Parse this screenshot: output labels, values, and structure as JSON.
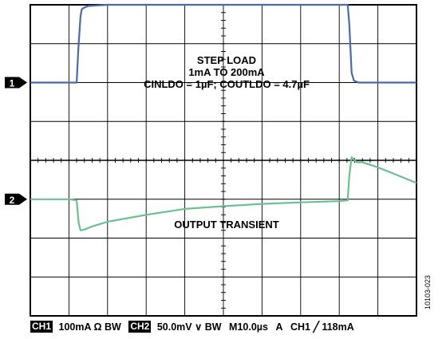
{
  "chart_data": {
    "type": "line",
    "title": "",
    "xlabel": "",
    "ylabel": "",
    "divisions": {
      "x": 10,
      "y": 8
    },
    "xlim": [
      0,
      10
    ],
    "ylim": [
      0,
      8
    ],
    "grid": true,
    "annotations": {
      "step_load_title": "STEP LOAD",
      "step_load_range": "1mA TO 200mA",
      "caps": "CINLDO = 1µF; COUTLDO = 4.7µF",
      "output_transient": "OUTPUT TRANSIENT"
    },
    "series": [
      {
        "name": "1",
        "color": "#4a6aa8",
        "marker_label": "1",
        "marker_level": 6.0,
        "x": [
          0,
          1.2,
          1.24,
          1.3,
          1.33,
          1.38,
          1.5,
          2.0,
          4.0,
          6.0,
          7.5,
          8.22,
          8.26,
          8.32,
          8.38,
          8.5,
          9.0,
          10.0
        ],
        "y": [
          6.0,
          6.0,
          6.8,
          7.7,
          7.88,
          7.92,
          7.97,
          8.0,
          8.0,
          8.0,
          8.0,
          8.0,
          7.5,
          6.25,
          6.05,
          6.0,
          6.0,
          6.0
        ]
      },
      {
        "name": "2",
        "color": "#6cc090",
        "marker_label": "2",
        "marker_level": 3.0,
        "x": [
          0,
          1.0,
          1.2,
          1.25,
          1.3,
          1.4,
          1.6,
          2.0,
          3.0,
          4.0,
          5.0,
          6.0,
          7.0,
          8.0,
          8.22,
          8.26,
          8.32,
          8.45,
          8.6,
          9.0,
          9.5,
          10.0
        ],
        "y": [
          3.0,
          3.0,
          2.97,
          2.4,
          2.2,
          2.22,
          2.3,
          2.42,
          2.6,
          2.75,
          2.82,
          2.88,
          2.92,
          2.95,
          2.97,
          3.6,
          4.08,
          3.95,
          3.95,
          3.82,
          3.62,
          3.42
        ]
      }
    ],
    "status_bar": {
      "ch1_label": "CH1",
      "ch1_setting": "100mA Ω",
      "ch1_bw": "BW",
      "ch2_label": "CH2",
      "ch2_setting": "50.0mV",
      "ch2_bw_symbol": "∨",
      "ch2_bw": "BW",
      "timebase": "M10.0µs",
      "trigger_mode": "A",
      "trigger_source": "CH1",
      "trigger_edge": "╱",
      "trigger_level": "118mA"
    },
    "figure_id": "10103-023"
  }
}
